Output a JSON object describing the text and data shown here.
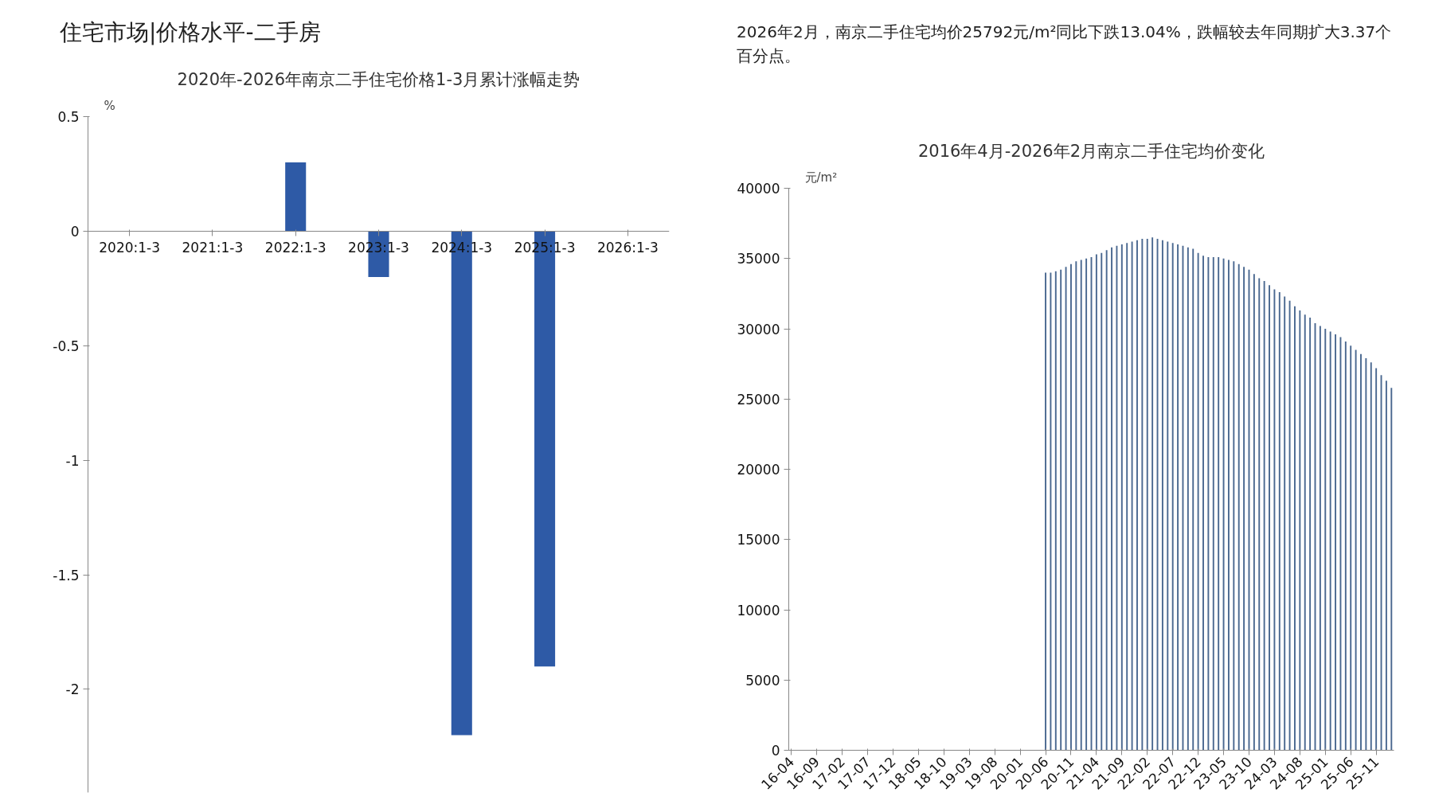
{
  "chart_data": [
    {
      "type": "bar",
      "title": "2020年-2026年南京二手住宅价格1-3月累计涨幅走势",
      "ylabel": "%",
      "annotations": [
        "住宅市场|价格水平-二手房"
      ],
      "categories": [
        "2020:1-3",
        "2021:1-3",
        "2022:1-3",
        "2023:1-3",
        "2024:1-3",
        "2025:1-3",
        "2026:1-3"
      ],
      "values": [
        null,
        null,
        0.3,
        -0.2,
        -2.2,
        -1.9,
        null
      ],
      "color": "#2e5aa6",
      "ylim": [
        -2.45,
        0.5
      ],
      "yticks": [
        0.5,
        0,
        -0.5,
        -1,
        -1.5,
        -2
      ]
    },
    {
      "type": "bar",
      "title": "2016年4月-2026年2月南京二手住宅均价变化",
      "ylabel": "元/m²",
      "annotations": [
        "2026年2月，南京二手住宅均价25792元/m²同比下跌13.04%，跌幅较去年同期扩大3.37个百分点。"
      ],
      "categories": [
        "16-04",
        null,
        null,
        null,
        null,
        "16-09",
        null,
        null,
        null,
        null,
        "17-02",
        null,
        null,
        null,
        null,
        "17-07",
        null,
        null,
        null,
        null,
        "17-12",
        null,
        null,
        null,
        null,
        "18-05",
        null,
        null,
        null,
        null,
        "18-10",
        null,
        null,
        null,
        null,
        "19-03",
        null,
        null,
        null,
        null,
        "19-08",
        null,
        null,
        null,
        null,
        "20-01",
        null,
        null,
        null,
        null,
        "20-06",
        null,
        null,
        null,
        null,
        "20-11",
        null,
        null,
        null,
        null,
        "21-04",
        null,
        null,
        null,
        null,
        "21-09",
        null,
        null,
        null,
        null,
        "22-02",
        null,
        null,
        null,
        null,
        "22-07",
        null,
        null,
        null,
        null,
        "22-12",
        null,
        null,
        null,
        null,
        "23-05",
        null,
        null,
        null,
        null,
        "23-10",
        null,
        null,
        null,
        null,
        "24-03",
        null,
        null,
        null,
        null,
        "24-08",
        null,
        null,
        null,
        null,
        "25-01",
        null,
        null,
        null,
        null,
        "25-06",
        null,
        null,
        null,
        null,
        "25-11",
        null,
        null,
        null
      ],
      "values": [
        null,
        null,
        null,
        null,
        null,
        null,
        null,
        null,
        null,
        null,
        null,
        null,
        null,
        null,
        null,
        null,
        null,
        null,
        null,
        null,
        null,
        null,
        null,
        null,
        null,
        null,
        null,
        null,
        null,
        null,
        null,
        null,
        null,
        null,
        null,
        null,
        null,
        null,
        null,
        null,
        null,
        null,
        null,
        null,
        null,
        null,
        null,
        null,
        null,
        null,
        34000,
        34000,
        34100,
        34200,
        34400,
        34600,
        34800,
        34900,
        35000,
        35100,
        35300,
        35400,
        35600,
        35800,
        35900,
        36000,
        36100,
        36200,
        36300,
        36400,
        36400,
        36500,
        36400,
        36300,
        36200,
        36100,
        36000,
        35900,
        35800,
        35700,
        35400,
        35200,
        35100,
        35100,
        35100,
        35000,
        34900,
        34800,
        34600,
        34400,
        34200,
        33900,
        33600,
        33400,
        33100,
        32800,
        32600,
        32300,
        32000,
        31600,
        31300,
        31000,
        30800,
        30400,
        30200,
        30000,
        29800,
        29600,
        29400,
        29100,
        28800,
        28500,
        28200,
        27900,
        27600,
        27200,
        26700,
        26300,
        25792
      ],
      "color": "#4a6890",
      "ylim": [
        0,
        40000
      ],
      "yticks": [
        0,
        5000,
        10000,
        15000,
        20000,
        25000,
        30000,
        35000,
        40000
      ]
    }
  ]
}
